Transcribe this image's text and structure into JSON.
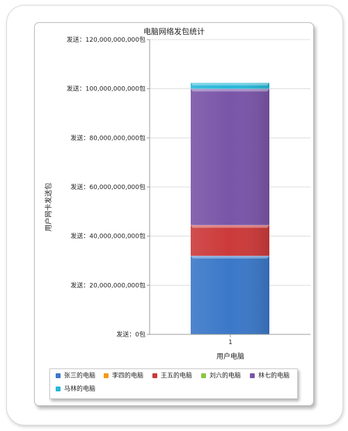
{
  "chart_data": {
    "type": "bar",
    "stacked": true,
    "title": "电脑网络发包统计",
    "xlabel": "用户电脑",
    "ylabel": "用户网卡发送包",
    "categories": [
      "1"
    ],
    "ylim": [
      0,
      120000000000
    ],
    "y_ticks": [
      {
        "value": 0,
        "label": "发送：0包"
      },
      {
        "value": 20000000000,
        "label": "发送：20,000,000,000包"
      },
      {
        "value": 40000000000,
        "label": "发送：40,000,000,000包"
      },
      {
        "value": 60000000000,
        "label": "发送：60,000,000,000包"
      },
      {
        "value": 80000000000,
        "label": "发送：80,000,000,000包"
      },
      {
        "value": 100000000000,
        "label": "发送：100,000,000,000包"
      },
      {
        "value": 120000000000,
        "label": "发送：120,000,000,000包"
      }
    ],
    "grid": true,
    "legend_position": "bottom",
    "series": [
      {
        "name": "张三的电脑",
        "values": [
          32000000000
        ],
        "color": "#3b78c8"
      },
      {
        "name": "李四的电脑",
        "values": [
          0
        ],
        "color": "#f39a1e"
      },
      {
        "name": "王五的电脑",
        "values": [
          12500000000
        ],
        "color": "#cc3a3a"
      },
      {
        "name": "刘六的电脑",
        "values": [
          0
        ],
        "color": "#8cc63f"
      },
      {
        "name": "林七的电脑",
        "values": [
          55500000000
        ],
        "color": "#7a55a8"
      },
      {
        "name": "马林的电脑",
        "values": [
          2500000000
        ],
        "color": "#28b8d8"
      }
    ]
  }
}
